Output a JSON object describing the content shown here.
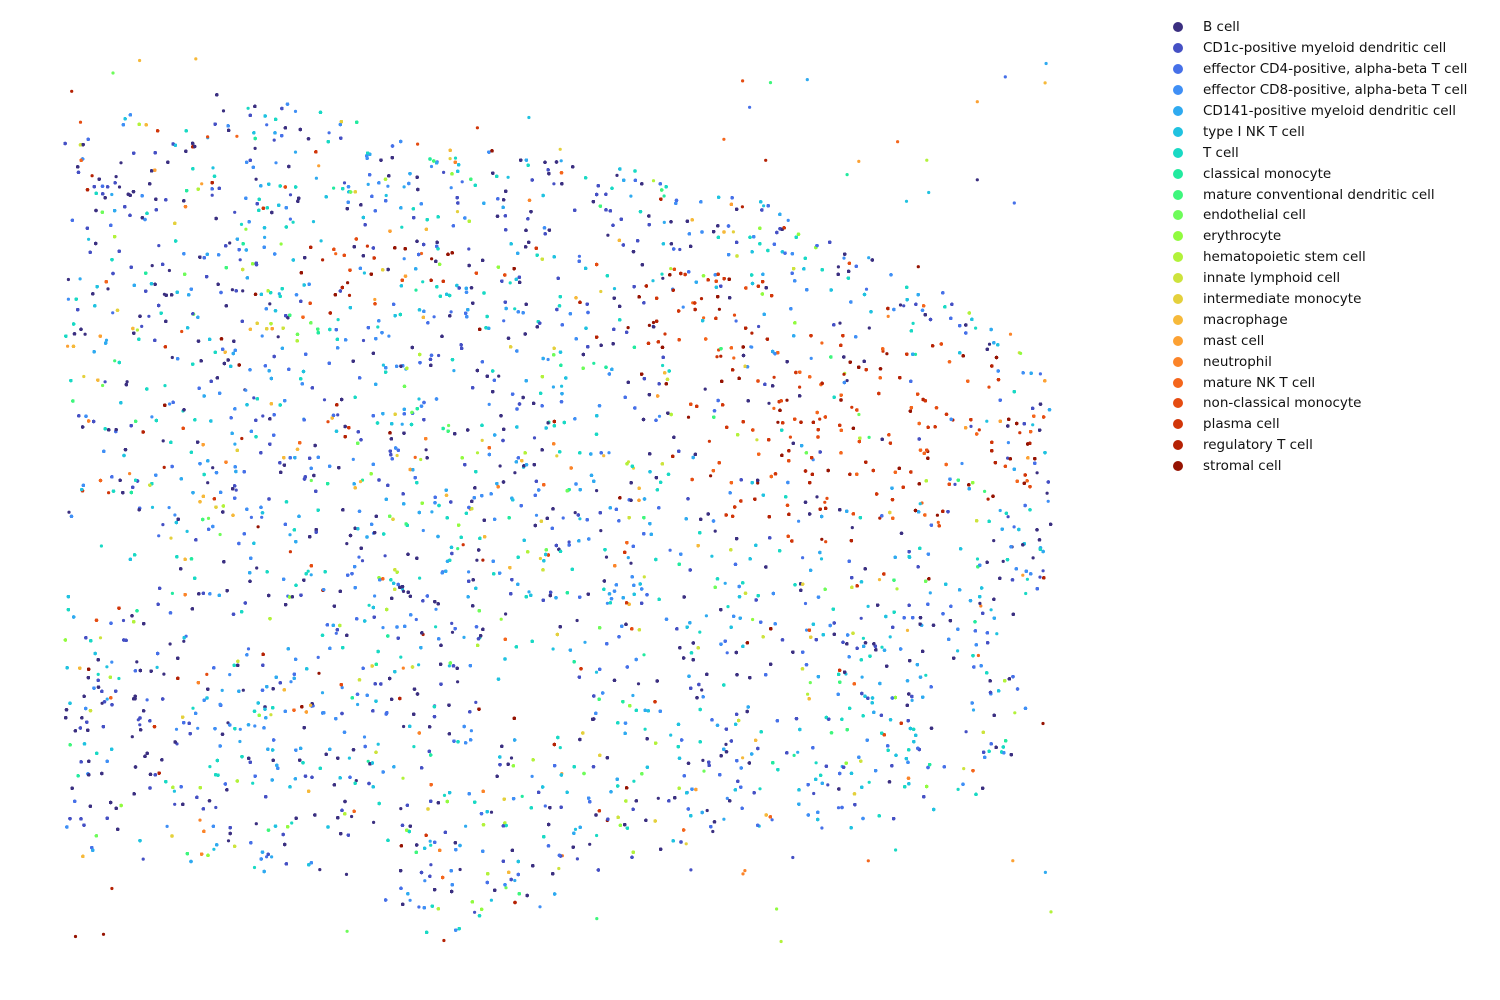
{
  "chart_data": {
    "type": "scatter",
    "title": "",
    "xlabel": "",
    "ylabel": "",
    "axes_visible": false,
    "grid": false,
    "legend_position": "right",
    "description_note_omitted": true,
    "series": [
      {
        "name": "B cell",
        "color": "#3b2f80"
      },
      {
        "name": "CD1c-positive myeloid dendritic cell",
        "color": "#4550c4"
      },
      {
        "name": "effector CD4-positive, alpha-beta T cell",
        "color": "#4670e8"
      },
      {
        "name": "effector CD8-positive, alpha-beta T cell",
        "color": "#3f8ff5"
      },
      {
        "name": "CD141-positive myeloid dendritic cell",
        "color": "#2faaf0"
      },
      {
        "name": "type I NK T cell",
        "color": "#20c2e0"
      },
      {
        "name": "T cell",
        "color": "#19d9c4"
      },
      {
        "name": "classical monocyte",
        "color": "#22ea9f"
      },
      {
        "name": "mature conventional dendritic cell",
        "color": "#3ef67c"
      },
      {
        "name": "endothelial cell",
        "color": "#6efc5a"
      },
      {
        "name": "erythrocyte",
        "color": "#91fb3f"
      },
      {
        "name": "hematopoietic stem cell",
        "color": "#b2f23a"
      },
      {
        "name": "innate lymphoid cell",
        "color": "#cde33c"
      },
      {
        "name": "intermediate monocyte",
        "color": "#e4d03c"
      },
      {
        "name": "macrophage",
        "color": "#f6b93a"
      },
      {
        "name": "mast cell",
        "color": "#fca133"
      },
      {
        "name": "neutrophil",
        "color": "#fb8429"
      },
      {
        "name": "mature NK T cell",
        "color": "#f4661c"
      },
      {
        "name": "non-classical monocyte",
        "color": "#e54c11"
      },
      {
        "name": "plasma cell",
        "color": "#d13609"
      },
      {
        "name": "regulatory T cell",
        "color": "#b52204"
      },
      {
        "name": "stromal cell",
        "color": "#951302"
      }
    ]
  }
}
